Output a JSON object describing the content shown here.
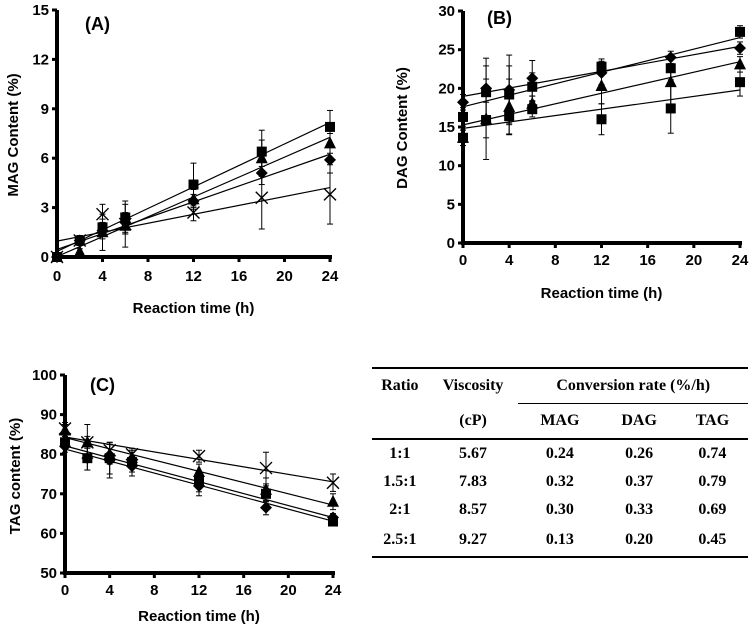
{
  "chart_data": [
    {
      "type": "scatter",
      "title": "(A)",
      "xlabel": "Reaction time (h)",
      "ylabel": "MAG Content (%)",
      "xlim": [
        0,
        24
      ],
      "ylim": [
        0,
        15
      ],
      "xticks": [
        0,
        4,
        8,
        12,
        16,
        20,
        24
      ],
      "yticks": [
        0,
        3,
        6,
        9,
        12,
        15
      ],
      "trendlines": "linear",
      "x": [
        0,
        2,
        4,
        6,
        12,
        18,
        24
      ],
      "series": [
        {
          "name": "1:1",
          "marker": "diamond",
          "values": [
            0,
            1.0,
            1.6,
            2.1,
            3.4,
            5.1,
            5.9
          ],
          "errors": [
            0.1,
            0.3,
            0.5,
            0.6,
            0.4,
            0.7,
            0.8
          ]
        },
        {
          "name": "1.5:1",
          "marker": "square",
          "values": [
            0,
            1.0,
            1.8,
            2.4,
            4.4,
            6.4,
            7.9
          ],
          "errors": [
            0.1,
            0.3,
            0.5,
            1.0,
            1.3,
            1.3,
            1.0
          ]
        },
        {
          "name": "2:1",
          "marker": "triangle",
          "values": [
            0,
            0.3,
            1.5,
            1.9,
            3.5,
            6.0,
            6.9
          ],
          "errors": [
            0.1,
            0.2,
            1.1,
            1.3,
            0.6,
            1.1,
            0.6
          ]
        },
        {
          "name": "2.5:1",
          "marker": "cross",
          "values": [
            0,
            1.0,
            2.6,
            2.0,
            2.7,
            3.6,
            3.8
          ],
          "errors": [
            0.1,
            0.3,
            0.6,
            0.6,
            0.5,
            1.9,
            1.8
          ]
        }
      ]
    },
    {
      "type": "scatter",
      "title": "(B)",
      "xlabel": "Reaction time (h)",
      "ylabel": "DAG Content (%)",
      "xlim": [
        0,
        24
      ],
      "ylim": [
        0,
        30
      ],
      "xticks": [
        0,
        4,
        8,
        12,
        16,
        20,
        24
      ],
      "yticks": [
        0,
        5,
        10,
        15,
        20,
        25,
        30
      ],
      "trendlines": "linear",
      "x": [
        0,
        2,
        4,
        6,
        12,
        18,
        24
      ],
      "series": [
        {
          "name": "1:1",
          "marker": "diamond",
          "values": [
            18.2,
            20.0,
            19.8,
            21.3,
            22.0,
            24.0,
            25.2
          ],
          "errors": [
            1.0,
            3.9,
            4.5,
            2.3,
            1.5,
            0.8,
            0.8
          ]
        },
        {
          "name": "1.5:1",
          "marker": "square",
          "values": [
            16.3,
            19.5,
            19.2,
            20.2,
            22.8,
            22.6,
            27.3
          ],
          "errors": [
            1.2,
            3.4,
            3.7,
            1.8,
            1.0,
            1.5,
            0.8
          ]
        },
        {
          "name": "2:1",
          "marker": "triangle",
          "values": [
            13.6,
            16.0,
            17.6,
            18.0,
            20.3,
            20.8,
            23.1
          ],
          "errors": [
            1.0,
            5.2,
            3.6,
            1.0,
            2.3,
            3.0,
            1.0
          ]
        },
        {
          "name": "2.5:1",
          "marker": "square",
          "values": [
            13.6,
            15.9,
            16.4,
            17.3,
            16.0,
            17.4,
            20.8
          ],
          "errors": [
            1.0,
            2.3,
            2.3,
            1.0,
            2.0,
            3.2,
            1.8
          ]
        }
      ]
    },
    {
      "type": "scatter",
      "title": "(C)",
      "xlabel": "Reaction time (h)",
      "ylabel": "TAG content (%)",
      "xlim": [
        0,
        24
      ],
      "ylim": [
        50,
        100
      ],
      "xticks": [
        0,
        4,
        8,
        12,
        16,
        20,
        24
      ],
      "yticks": [
        50,
        60,
        70,
        80,
        90,
        100
      ],
      "trendlines": "linear",
      "x": [
        0,
        2,
        4,
        6,
        12,
        18,
        24
      ],
      "series": [
        {
          "name": "1:1",
          "marker": "diamond",
          "values": [
            82,
            79,
            78.5,
            77,
            72,
            66.5,
            64
          ],
          "errors": [
            1.5,
            3.0,
            4.5,
            2.5,
            2.5,
            1.8,
            1.0
          ]
        },
        {
          "name": "1.5:1",
          "marker": "square",
          "values": [
            83,
            79,
            79,
            78,
            73,
            70,
            63
          ],
          "errors": [
            1.5,
            3.0,
            4.0,
            2.5,
            2.5,
            2.0,
            1.0
          ]
        },
        {
          "name": "2:1",
          "marker": "triangle",
          "values": [
            86,
            83,
            80,
            79,
            75.5,
            71,
            68
          ],
          "errors": [
            1.5,
            4.5,
            2.5,
            2.0,
            2.0,
            3.0,
            2.0
          ]
        },
        {
          "name": "2.5:1",
          "marker": "cross",
          "values": [
            86.5,
            83,
            81,
            80,
            79.5,
            76.5,
            72.8
          ],
          "errors": [
            1.5,
            1.5,
            1.5,
            1.5,
            1.5,
            4.0,
            2.2
          ]
        }
      ]
    },
    {
      "type": "table",
      "headers": {
        "ratio": "Ratio",
        "viscosity": "Viscosity",
        "viscosity_unit": "(cP)",
        "rate": "Conversion rate (%/h)",
        "mag": "MAG",
        "dag": "DAG",
        "tag": "TAG"
      },
      "rows": [
        {
          "ratio": "1:1",
          "viscosity": "5.67",
          "mag": "0.24",
          "dag": "0.26",
          "tag": "0.74"
        },
        {
          "ratio": "1.5:1",
          "viscosity": "7.83",
          "mag": "0.32",
          "dag": "0.37",
          "tag": "0.79"
        },
        {
          "ratio": "2:1",
          "viscosity": "8.57",
          "mag": "0.30",
          "dag": "0.33",
          "tag": "0.69"
        },
        {
          "ratio": "2.5:1",
          "viscosity": "9.27",
          "mag": "0.13",
          "dag": "0.20",
          "tag": "0.45"
        }
      ]
    }
  ]
}
